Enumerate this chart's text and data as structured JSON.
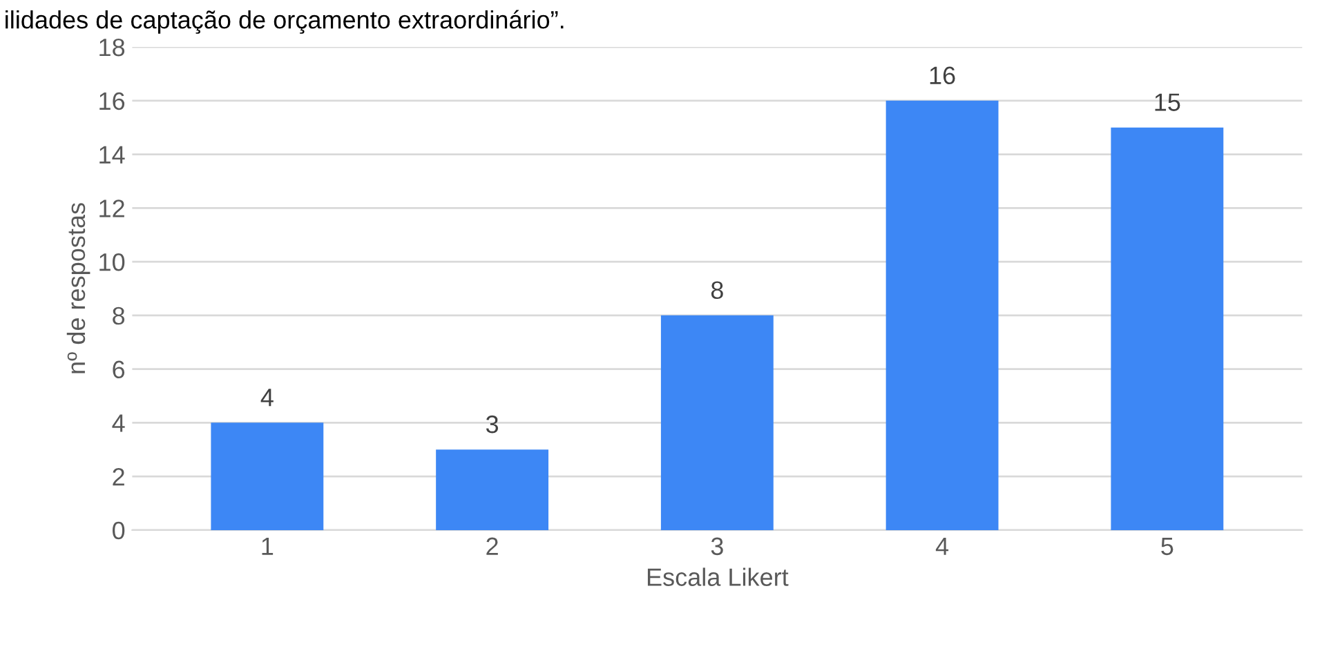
{
  "chart_data": {
    "type": "bar",
    "title": "ilidades de captação de orçamento extraordinário”.",
    "categories": [
      "1",
      "2",
      "3",
      "4",
      "5"
    ],
    "values": [
      4,
      3,
      8,
      16,
      15
    ],
    "color": "#3d87f5",
    "xlabel": "Escala Likert",
    "ylabel": "nº de respostas",
    "ylim": [
      0,
      18
    ],
    "yticks": [
      0,
      2,
      4,
      6,
      8,
      10,
      12,
      14,
      16,
      18
    ],
    "grid": "y",
    "data_labels": true
  }
}
